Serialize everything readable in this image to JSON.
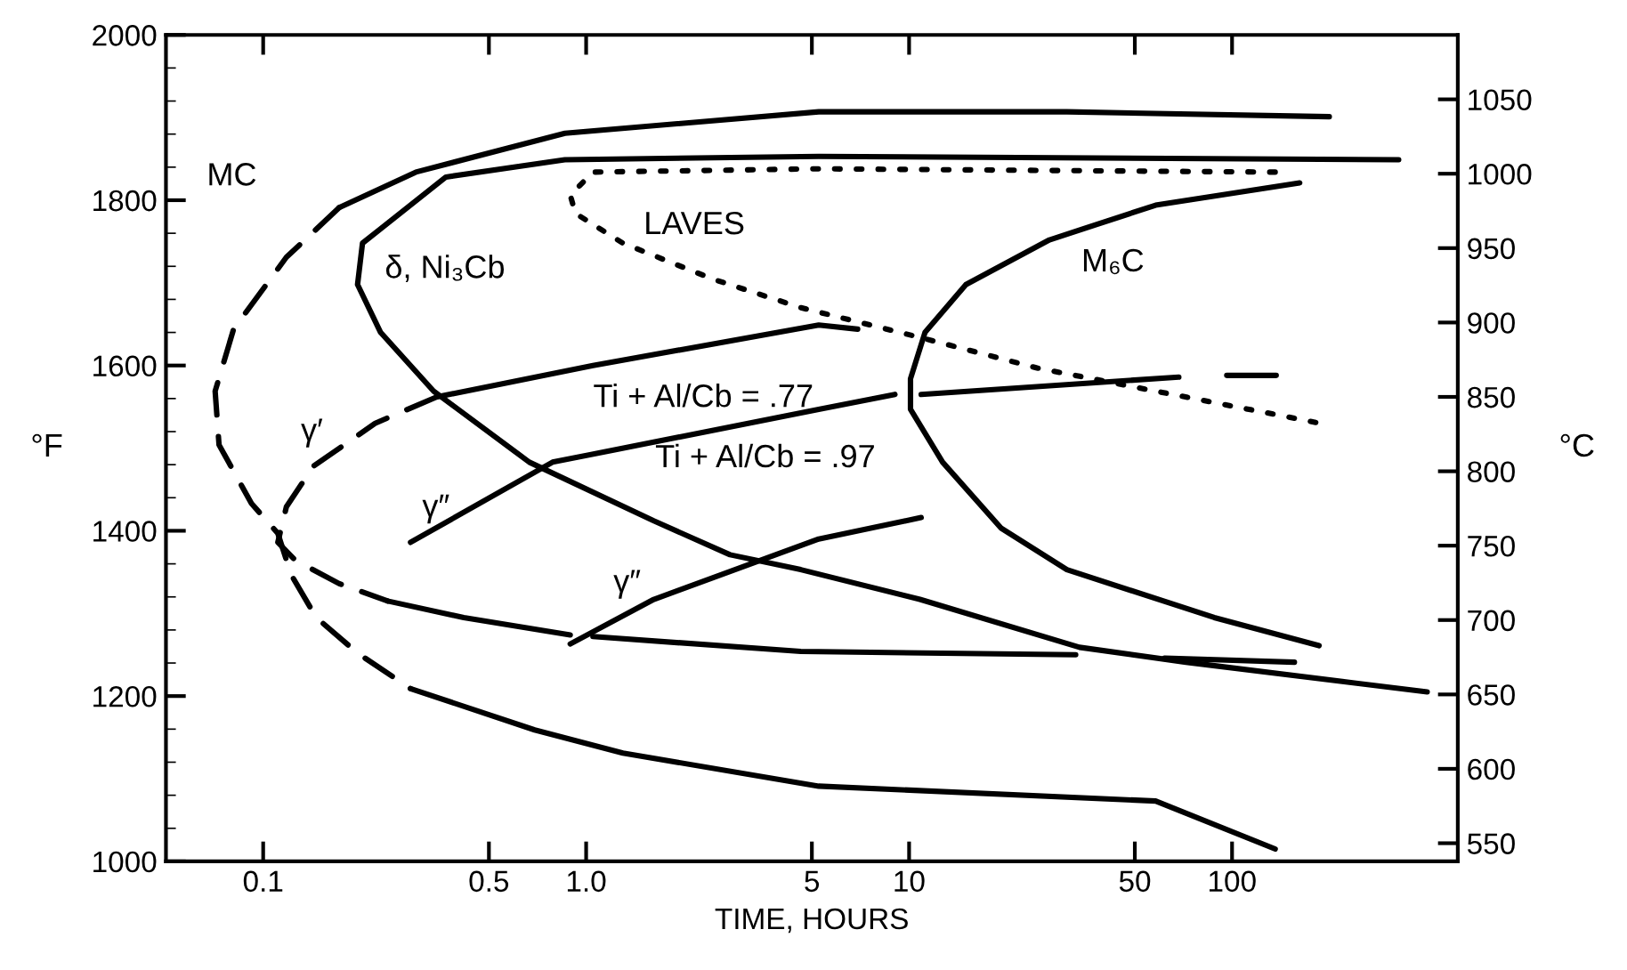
{
  "chart_data": {
    "type": "line",
    "xlabel": "TIME, HOURS",
    "ylabel": "°F",
    "y2label": "°C",
    "log": "x",
    "grid": false,
    "legend": false,
    "marker": "none",
    "xlim": [
      0.05,
      500
    ],
    "xticks": [
      0.1,
      0.5,
      {
        "value": 1,
        "label": "1.0"
      },
      5,
      10,
      50,
      100
    ],
    "ylim": [
      1000,
      2000
    ],
    "yticks": [
      1000,
      1200,
      1400,
      1600,
      1800,
      2000
    ],
    "y2lim": [
      537.8,
      1093.3
    ],
    "y2ticks": [
      550,
      600,
      650,
      700,
      750,
      800,
      850,
      900,
      950,
      1000,
      1050
    ],
    "series": [
      {
        "color": "#000000",
        "line_style": "solid",
        "x": [
          0.172,
          0.297,
          0.86,
          5.25,
          30.8,
          200
        ],
        "values": [
          1791,
          1834,
          1881,
          1907,
          1907,
          1901
        ]
      },
      {
        "color": "#000000",
        "line_style": "dashed",
        "x": [
          0.172,
          0.118,
          0.081,
          0.071,
          0.073,
          0.092,
          0.111,
          0.122,
          0.146,
          0.196,
          0.286
        ],
        "values": [
          1791,
          1731,
          1644,
          1569,
          1504,
          1433,
          1397,
          1347,
          1295,
          1252,
          1209
        ]
      },
      {
        "color": "#000000",
        "line_style": "solid",
        "x": [
          0.286,
          0.693,
          1.3,
          5.25,
          58,
          136
        ],
        "values": [
          1209,
          1159,
          1131,
          1091,
          1073,
          1015
        ]
      },
      {
        "color": "#000000",
        "line_style": "solid",
        "x": [
          328,
          5.25,
          0.859,
          0.368,
          0.203,
          0.196,
          0.231,
          0.337,
          0.667,
          1.62,
          2.79,
          4.62,
          10.8,
          33.7,
          72,
          402
        ],
        "values": [
          1849,
          1853,
          1849,
          1828,
          1748,
          1698,
          1640,
          1569,
          1483,
          1412,
          1371,
          1353,
          1317,
          1259,
          1241,
          1205
        ]
      },
      {
        "color": "#000000",
        "line_style": "dotted",
        "x": [
          136,
          5.25,
          1.05,
          0.893,
          0.927,
          1.3,
          2.45,
          4.62,
          10.8,
          24.9,
          58,
          188
        ],
        "values": [
          1834,
          1838,
          1834,
          1806,
          1784,
          1748,
          1705,
          1670,
          1634,
          1597,
          1569,
          1530
        ]
      },
      {
        "color": "#000000",
        "line_style": "solid",
        "x": [
          162,
          58,
          27.2,
          15,
          11.2,
          10.1,
          10.1,
          12.7,
          19.3,
          30.8,
          88.1,
          186
        ],
        "values": [
          1821,
          1794,
          1752,
          1698,
          1640,
          1584,
          1547,
          1483,
          1403,
          1353,
          1295,
          1261
        ]
      },
      {
        "color": "#000000",
        "line_style": "solid",
        "x": [
          0.345,
          1.05,
          5.25,
          6.93
        ],
        "values": [
          1562,
          1600,
          1649,
          1644
        ]
      },
      {
        "color": "#000000",
        "line_style": "dashed",
        "x": [
          0.345,
          0.222,
          0.143,
          0.118,
          0.111,
          0.126,
          0.172,
          0.243
        ],
        "values": [
          1562,
          1530,
          1478,
          1429,
          1386,
          1364,
          1336,
          1315
        ]
      },
      {
        "color": "#000000",
        "line_style": "solid",
        "x": [
          0.243,
          0.418,
          0.893,
          null,
          1.05,
          4.62,
          32.8,
          null,
          61.8,
          156
        ],
        "values": [
          1315,
          1295,
          1274,
          null,
          1272,
          1254,
          1250,
          null,
          1246,
          1241
        ]
      },
      {
        "color": "#000000",
        "line_style": "solid",
        "x": [
          0.286,
          0.787,
          5.25,
          9.04,
          null,
          10.9,
          68.4,
          null,
          96.3,
          137
        ],
        "values": [
          1386,
          1483,
          1547,
          1565,
          null,
          1565,
          1586,
          null,
          1588,
          1588
        ]
      },
      {
        "color": "#000000",
        "line_style": "solid",
        "x": [
          0.893,
          1.62,
          5.25,
          10.9
        ],
        "values": [
          1263,
          1317,
          1390,
          1416
        ]
      }
    ],
    "annotations": [
      "MC",
      "δ, Ni₃Cb",
      "LAVES",
      "M₆C",
      "γ′",
      "Ti + Al/Cb = .77",
      "γ″",
      "Ti + Al/Cb = .97",
      "γ″"
    ]
  }
}
